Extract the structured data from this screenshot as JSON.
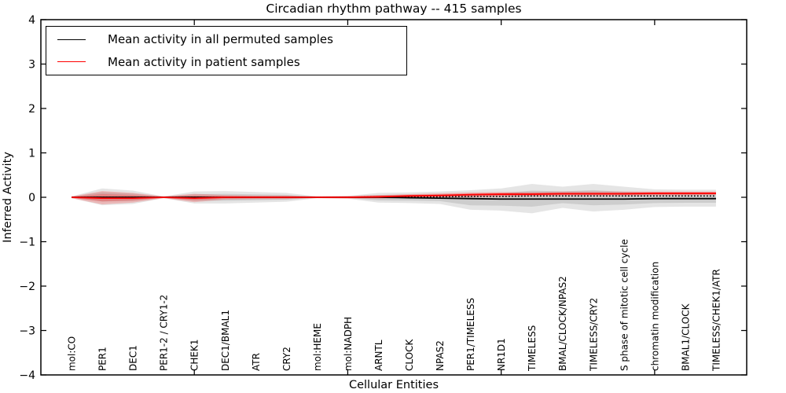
{
  "figure": {
    "title": "Circadian rhythm pathway -- 415 samples",
    "xlabel": "Cellular Entities",
    "ylabel": "Inferred Activity"
  },
  "legend": {
    "position": "upper left",
    "entries": [
      {
        "label": "Mean activity in all permuted samples",
        "color": "#000000"
      },
      {
        "label": "Mean activity in patient samples",
        "color": "#ff0000"
      }
    ]
  },
  "chart_data": {
    "type": "line",
    "title": "Circadian rhythm pathway -- 415 samples",
    "xlabel": "Cellular Entities",
    "ylabel": "Inferred Activity",
    "ylim": [
      -4,
      4
    ],
    "yticks": [
      -4,
      -3,
      -2,
      -1,
      0,
      1,
      2,
      3,
      4
    ],
    "ytick_labels": [
      "−4",
      "−3",
      "−2",
      "−1",
      "0",
      "1",
      "2",
      "3",
      "4"
    ],
    "xlim": [
      0,
      23
    ],
    "xticks": [
      5,
      10,
      15,
      20
    ],
    "xtick_labels": [
      "",
      "",
      "",
      ""
    ],
    "grid": false,
    "legend_position": "upper left",
    "categories": [
      "mol:CO",
      "PER1",
      "DEC1",
      "PER1-2 / CRY1-2",
      "CHEK1",
      "DEC1/BMAL1",
      "ATR",
      "CRY2",
      "mol:HEME",
      "mol:NADPH",
      "ARNTL",
      "CLOCK",
      "NPAS2",
      "PER1/TIMELESS",
      "NR1D1",
      "TIMELESS",
      "BMAL/CLOCK/NPAS2",
      "TIMELESS/CRY2",
      "S phase of mitotic cell cycle",
      "chromatin modification",
      "BMAL1/CLOCK",
      "TIMELESS/CHEK1/ATR"
    ],
    "x_positions": [
      1,
      2,
      3,
      4,
      5,
      6,
      7,
      8,
      9,
      10,
      11,
      12,
      13,
      14,
      15,
      16,
      17,
      18,
      19,
      20,
      21,
      22
    ],
    "series": [
      {
        "name": "Mean activity in all permuted samples",
        "color": "#000000",
        "style": "solid",
        "values": [
          0,
          0,
          0,
          0,
          0,
          0,
          0,
          0,
          0,
          0,
          0,
          -0.01,
          -0.02,
          -0.03,
          -0.04,
          -0.04,
          -0.04,
          -0.04,
          -0.04,
          -0.03,
          -0.03,
          -0.03
        ]
      },
      {
        "name": "Permuted samples dotted reference",
        "color": "#000000",
        "style": "dotted",
        "values": [
          0,
          0,
          0,
          0,
          0,
          0,
          0,
          0,
          0,
          0,
          0.01,
          0.01,
          0.01,
          0.02,
          0.02,
          0.03,
          0.03,
          0.03,
          0.03,
          0.03,
          0.03,
          0.03
        ]
      },
      {
        "name": "Mean activity in patient samples",
        "color": "#ff0000",
        "style": "solid",
        "values": [
          0,
          -0.02,
          -0.02,
          0,
          -0.02,
          0,
          0,
          0,
          0,
          0,
          0.01,
          0.03,
          0.04,
          0.06,
          0.07,
          0.07,
          0.08,
          0.08,
          0.08,
          0.09,
          0.09,
          0.09
        ]
      }
    ],
    "bands": [
      {
        "name": "permuted-activity-range",
        "color": "#000000",
        "alpha": 0.1,
        "hi": [
          0.02,
          0.2,
          0.15,
          0.02,
          0.13,
          0.14,
          0.12,
          0.1,
          0.02,
          0.03,
          0.1,
          0.11,
          0.13,
          0.16,
          0.2,
          0.3,
          0.24,
          0.3,
          0.24,
          0.18,
          0.17,
          0.17
        ],
        "lo": [
          -0.02,
          -0.18,
          -0.15,
          -0.02,
          -0.14,
          -0.14,
          -0.12,
          -0.1,
          -0.02,
          -0.03,
          -0.12,
          -0.13,
          -0.15,
          -0.28,
          -0.3,
          -0.36,
          -0.24,
          -0.32,
          -0.28,
          -0.22,
          -0.21,
          -0.21
        ]
      },
      {
        "name": "patient-activity-range",
        "color": "#ff0000",
        "alpha": 0.2,
        "hi": [
          0.02,
          0.14,
          0.1,
          0.02,
          0.08,
          0.05,
          0.04,
          0.04,
          0.02,
          0.03,
          0.05,
          0.07,
          0.09,
          0.11,
          0.12,
          0.12,
          0.13,
          0.13,
          0.13,
          0.13,
          0.13,
          0.13
        ],
        "lo": [
          -0.02,
          -0.16,
          -0.12,
          -0.02,
          -0.11,
          -0.05,
          -0.04,
          -0.04,
          -0.02,
          -0.03,
          -0.03,
          -0.01,
          0.0,
          0.0,
          0.01,
          0.02,
          0.03,
          0.03,
          0.03,
          0.04,
          0.04,
          0.05
        ]
      }
    ]
  }
}
